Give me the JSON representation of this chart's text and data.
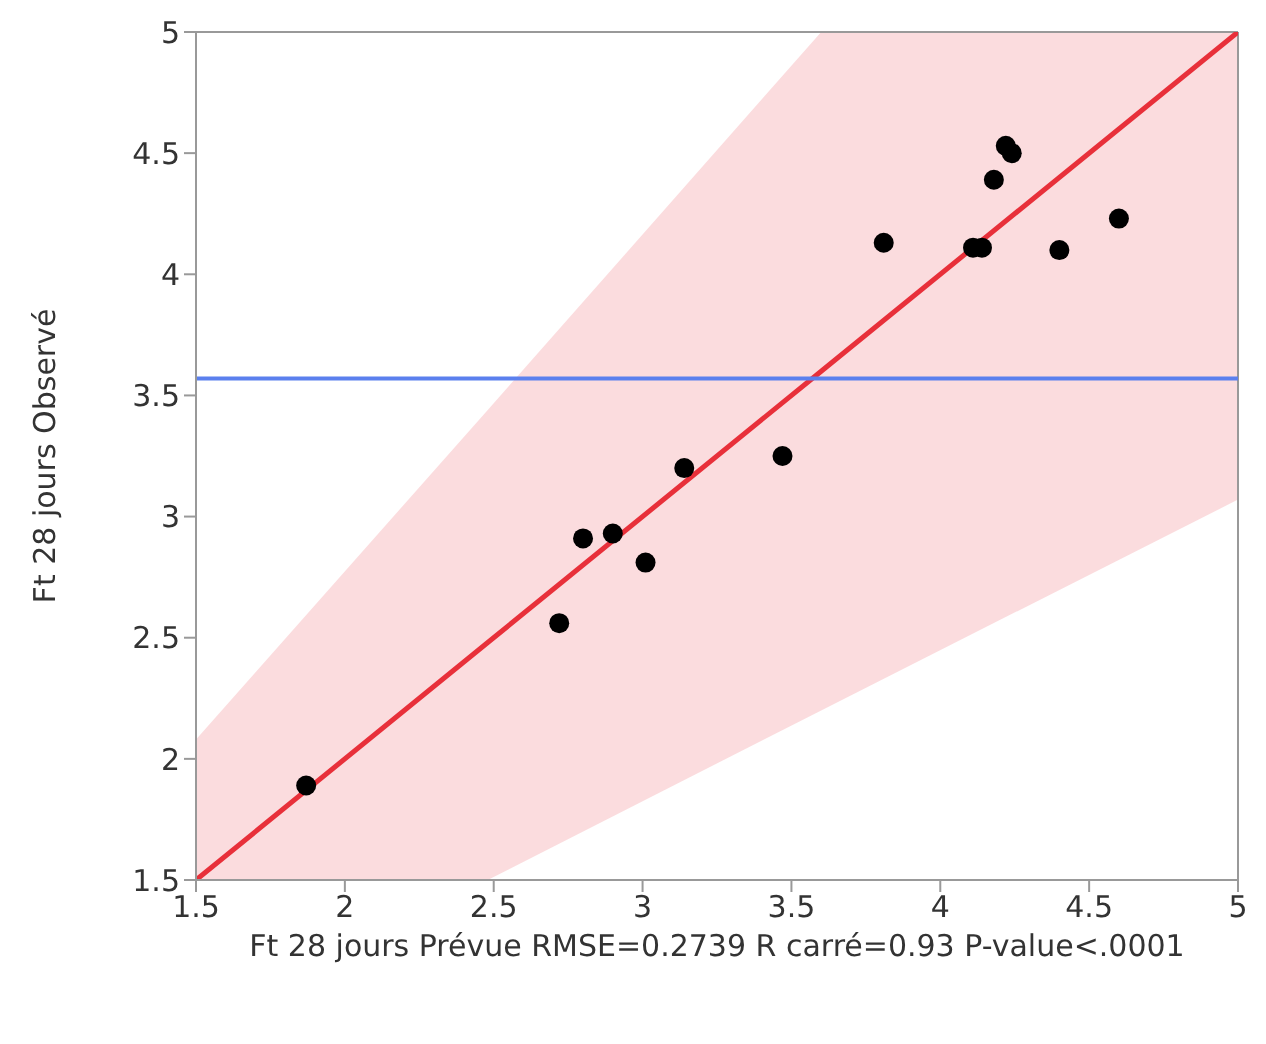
{
  "chart_data": {
    "type": "scatter",
    "xlabel": "Ft 28 jours Prévue RMSE=0.2739 R carré=0.93 P-value<.0001",
    "ylabel": "Ft 28 jours Observé",
    "xlim": [
      1.5,
      5
    ],
    "ylim": [
      1.5,
      5
    ],
    "xticks": [
      1.5,
      2,
      2.5,
      3,
      3.5,
      4,
      4.5,
      5
    ],
    "yticks": [
      1.5,
      2,
      2.5,
      3,
      3.5,
      4,
      4.5,
      5
    ],
    "marker": "circle",
    "series": [
      {
        "color": "#000000",
        "x": [
          1.87,
          2.72,
          2.8,
          2.9,
          3.01,
          3.14,
          3.47,
          3.81,
          4.11,
          4.14,
          4.18,
          4.22,
          4.24,
          4.4,
          4.6
        ],
        "values": [
          1.89,
          2.56,
          2.91,
          2.93,
          2.81,
          3.2,
          3.25,
          4.13,
          4.11,
          4.11,
          4.39,
          4.53,
          4.5,
          4.1,
          4.23
        ]
      },
      {
        "type": "line",
        "marker": "none",
        "color": "#e8303a",
        "x": [
          1.5,
          2.48,
          3.6,
          5
        ],
        "values": [
          1.5,
          2.48,
          3.6,
          5
        ],
        "lower": [
          1.5,
          1.5,
          2.2,
          3.07
        ],
        "upper": [
          2.08,
          3.44,
          5,
          5
        ]
      }
    ],
    "ref_lines": [
      {
        "axis": "y",
        "value": 3.57,
        "color": "#5b80ee"
      }
    ]
  }
}
